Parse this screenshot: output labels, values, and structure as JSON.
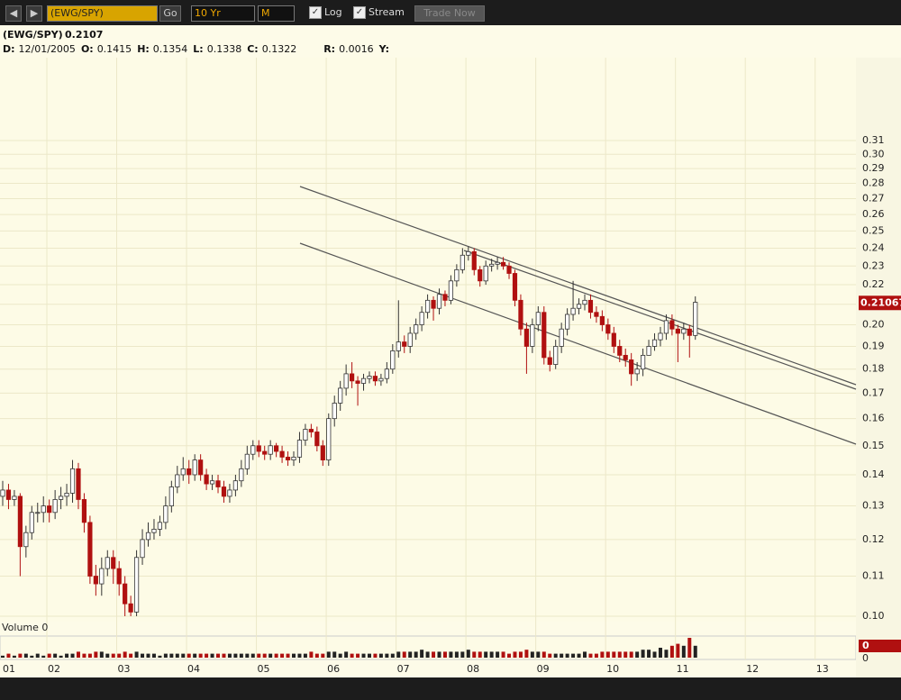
{
  "toolbar": {
    "symbol": "(EWG/SPY)",
    "go": "Go",
    "period": "10 Yr",
    "interval": "M",
    "log": "Log",
    "stream": "Stream",
    "trade": "Trade Now"
  },
  "chart_data": {
    "type": "candlestick",
    "title": "(EWG/SPY)",
    "last": "0.2107",
    "info": [
      {
        "label": "D:",
        "value": "12/01/2005"
      },
      {
        "label": "O:",
        "value": "0.1415"
      },
      {
        "label": "H:",
        "value": "0.1354"
      },
      {
        "label": "L:",
        "value": "0.1338"
      },
      {
        "label": "C:",
        "value": "0.1322"
      },
      {
        "label": "R:",
        "value": "0.0016"
      },
      {
        "label": "Y:"
      }
    ],
    "log_scale": true,
    "grid": true,
    "ylim": [
      0.1,
      0.31
    ],
    "yticks": [
      {
        "value": 0.1,
        "label": "0.10"
      },
      0.11,
      0.12,
      0.13,
      0.14,
      0.15,
      0.16,
      0.17,
      0.18,
      0.19,
      {
        "value": 0.2,
        "label": "0.20"
      },
      0.21,
      0.22,
      0.23,
      0.24,
      0.25,
      0.26,
      0.27,
      0.28,
      0.29,
      {
        "value": 0.3,
        "label": "0.30"
      },
      0.31
    ],
    "price_tag": 0.21067,
    "up_color": "#ffffff",
    "down_color": "#b01010",
    "xticks": [
      "01",
      "02",
      "03",
      "04",
      "05",
      "06",
      "07",
      "08",
      "09",
      "10",
      "11",
      "12",
      "13"
    ],
    "open": [
      0.133,
      0.135,
      0.132,
      0.133,
      0.118,
      0.122,
      0.128,
      0.128,
      0.13,
      0.128,
      0.132,
      0.133,
      0.134,
      0.142,
      0.132,
      0.125,
      0.11,
      0.108,
      0.112,
      0.115,
      0.112,
      0.108,
      0.103,
      0.101,
      0.115,
      0.12,
      0.122,
      0.123,
      0.125,
      0.13,
      0.136,
      0.14,
      0.142,
      0.14,
      0.145,
      0.14,
      0.137,
      0.138,
      0.136,
      0.133,
      0.135,
      0.138,
      0.142,
      0.147,
      0.15,
      0.148,
      0.147,
      0.15,
      0.148,
      0.146,
      0.145,
      0.146,
      0.152,
      0.156,
      0.155,
      0.15,
      0.145,
      0.16,
      0.166,
      0.172,
      0.178,
      0.175,
      0.174,
      0.176,
      0.177,
      0.175,
      0.176,
      0.18,
      0.188,
      0.192,
      0.19,
      0.196,
      0.2,
      0.206,
      0.212,
      0.208,
      0.215,
      0.212,
      0.222,
      0.228,
      0.236,
      0.238,
      0.228,
      0.222,
      0.23,
      0.231,
      0.232,
      0.23,
      0.226,
      0.212,
      0.198,
      0.19,
      0.2,
      0.206,
      0.185,
      0.182,
      0.19,
      0.198,
      0.205,
      0.208,
      0.21,
      0.212,
      0.206,
      0.204,
      0.2,
      0.196,
      0.19,
      0.186,
      0.184,
      0.178,
      0.18,
      0.186,
      0.19,
      0.193,
      0.196,
      0.202,
      0.198,
      0.196,
      0.198,
      0.195
    ],
    "high": [
      0.138,
      0.137,
      0.135,
      0.134,
      0.124,
      0.13,
      0.131,
      0.133,
      0.132,
      0.135,
      0.136,
      0.137,
      0.145,
      0.144,
      0.134,
      0.127,
      0.113,
      0.115,
      0.117,
      0.117,
      0.114,
      0.11,
      0.105,
      0.117,
      0.123,
      0.125,
      0.126,
      0.127,
      0.133,
      0.138,
      0.143,
      0.146,
      0.145,
      0.147,
      0.147,
      0.142,
      0.14,
      0.14,
      0.138,
      0.137,
      0.14,
      0.145,
      0.15,
      0.152,
      0.152,
      0.15,
      0.152,
      0.151,
      0.15,
      0.148,
      0.148,
      0.155,
      0.158,
      0.158,
      0.157,
      0.152,
      0.162,
      0.169,
      0.175,
      0.182,
      0.183,
      0.177,
      0.178,
      0.179,
      0.179,
      0.178,
      0.183,
      0.191,
      0.212,
      0.195,
      0.199,
      0.203,
      0.209,
      0.215,
      0.214,
      0.218,
      0.217,
      0.225,
      0.231,
      0.24,
      0.241,
      0.24,
      0.23,
      0.233,
      0.234,
      0.235,
      0.235,
      0.232,
      0.228,
      0.215,
      0.201,
      0.203,
      0.209,
      0.209,
      0.188,
      0.193,
      0.201,
      0.208,
      0.222,
      0.213,
      0.215,
      0.215,
      0.209,
      0.207,
      0.203,
      0.199,
      0.193,
      0.189,
      0.187,
      0.183,
      0.189,
      0.193,
      0.196,
      0.199,
      0.205,
      0.205,
      0.2,
      0.201,
      0.2,
      0.214
    ],
    "low": [
      0.13,
      0.129,
      0.13,
      0.11,
      0.115,
      0.12,
      0.125,
      0.125,
      0.125,
      0.126,
      0.129,
      0.13,
      0.131,
      0.129,
      0.122,
      0.108,
      0.105,
      0.105,
      0.11,
      0.108,
      0.105,
      0.1,
      0.1,
      0.1,
      0.113,
      0.118,
      0.12,
      0.121,
      0.123,
      0.128,
      0.134,
      0.138,
      0.137,
      0.138,
      0.138,
      0.135,
      0.135,
      0.134,
      0.131,
      0.131,
      0.133,
      0.136,
      0.14,
      0.145,
      0.146,
      0.145,
      0.145,
      0.146,
      0.144,
      0.143,
      0.143,
      0.144,
      0.15,
      0.153,
      0.148,
      0.143,
      0.143,
      0.157,
      0.163,
      0.169,
      0.172,
      0.165,
      0.171,
      0.174,
      0.173,
      0.173,
      0.174,
      0.178,
      0.185,
      0.187,
      0.187,
      0.193,
      0.197,
      0.203,
      0.202,
      0.205,
      0.209,
      0.21,
      0.219,
      0.226,
      0.233,
      0.225,
      0.219,
      0.22,
      0.227,
      0.228,
      0.228,
      0.223,
      0.209,
      0.195,
      0.178,
      0.187,
      0.197,
      0.182,
      0.179,
      0.18,
      0.187,
      0.195,
      0.202,
      0.205,
      0.207,
      0.203,
      0.201,
      0.197,
      0.193,
      0.187,
      0.183,
      0.181,
      0.173,
      0.175,
      0.177,
      0.187,
      0.188,
      0.19,
      0.193,
      0.195,
      0.183,
      0.193,
      0.185,
      0.193
    ],
    "close": [
      0.135,
      0.132,
      0.133,
      0.118,
      0.122,
      0.128,
      0.128,
      0.13,
      0.128,
      0.132,
      0.133,
      0.134,
      0.142,
      0.132,
      0.125,
      0.11,
      0.108,
      0.112,
      0.115,
      0.112,
      0.108,
      0.103,
      0.101,
      0.115,
      0.12,
      0.122,
      0.123,
      0.125,
      0.13,
      0.136,
      0.14,
      0.142,
      0.14,
      0.145,
      0.14,
      0.137,
      0.138,
      0.136,
      0.133,
      0.135,
      0.138,
      0.142,
      0.147,
      0.15,
      0.148,
      0.147,
      0.15,
      0.148,
      0.146,
      0.145,
      0.146,
      0.152,
      0.156,
      0.155,
      0.15,
      0.145,
      0.16,
      0.166,
      0.172,
      0.178,
      0.175,
      0.174,
      0.176,
      0.177,
      0.175,
      0.176,
      0.18,
      0.188,
      0.192,
      0.19,
      0.196,
      0.2,
      0.206,
      0.212,
      0.208,
      0.215,
      0.212,
      0.222,
      0.228,
      0.236,
      0.238,
      0.228,
      0.222,
      0.23,
      0.231,
      0.232,
      0.23,
      0.226,
      0.212,
      0.198,
      0.19,
      0.2,
      0.206,
      0.185,
      0.182,
      0.19,
      0.198,
      0.205,
      0.208,
      0.21,
      0.212,
      0.206,
      0.204,
      0.2,
      0.196,
      0.19,
      0.186,
      0.184,
      0.178,
      0.18,
      0.186,
      0.19,
      0.193,
      0.196,
      0.202,
      0.198,
      0.196,
      0.198,
      0.195,
      0.211
    ],
    "volume_label": "Volume 0",
    "volume_tag": 0,
    "volume_ticks": [
      0
    ],
    "volume_lim": [
      0,
      10
    ],
    "volume": [
      1,
      2,
      1,
      2,
      2,
      1,
      2,
      1,
      2,
      2,
      1,
      2,
      2,
      3,
      2,
      2,
      3,
      3,
      2,
      2,
      2,
      3,
      2,
      3,
      2,
      2,
      2,
      1,
      2,
      2,
      2,
      2,
      2,
      2,
      2,
      2,
      2,
      2,
      2,
      2,
      2,
      2,
      2,
      2,
      2,
      2,
      2,
      2,
      2,
      2,
      2,
      2,
      2,
      3,
      2,
      2,
      3,
      3,
      2,
      3,
      2,
      2,
      2,
      2,
      2,
      2,
      2,
      2,
      3,
      3,
      3,
      3,
      4,
      3,
      3,
      3,
      3,
      3,
      3,
      3,
      4,
      3,
      3,
      3,
      3,
      3,
      3,
      2,
      3,
      3,
      4,
      3,
      3,
      3,
      2,
      2,
      2,
      2,
      2,
      2,
      3,
      2,
      2,
      3,
      3,
      3,
      3,
      3,
      3,
      3,
      4,
      4,
      3,
      5,
      4,
      6,
      7,
      6,
      10,
      6
    ]
  }
}
